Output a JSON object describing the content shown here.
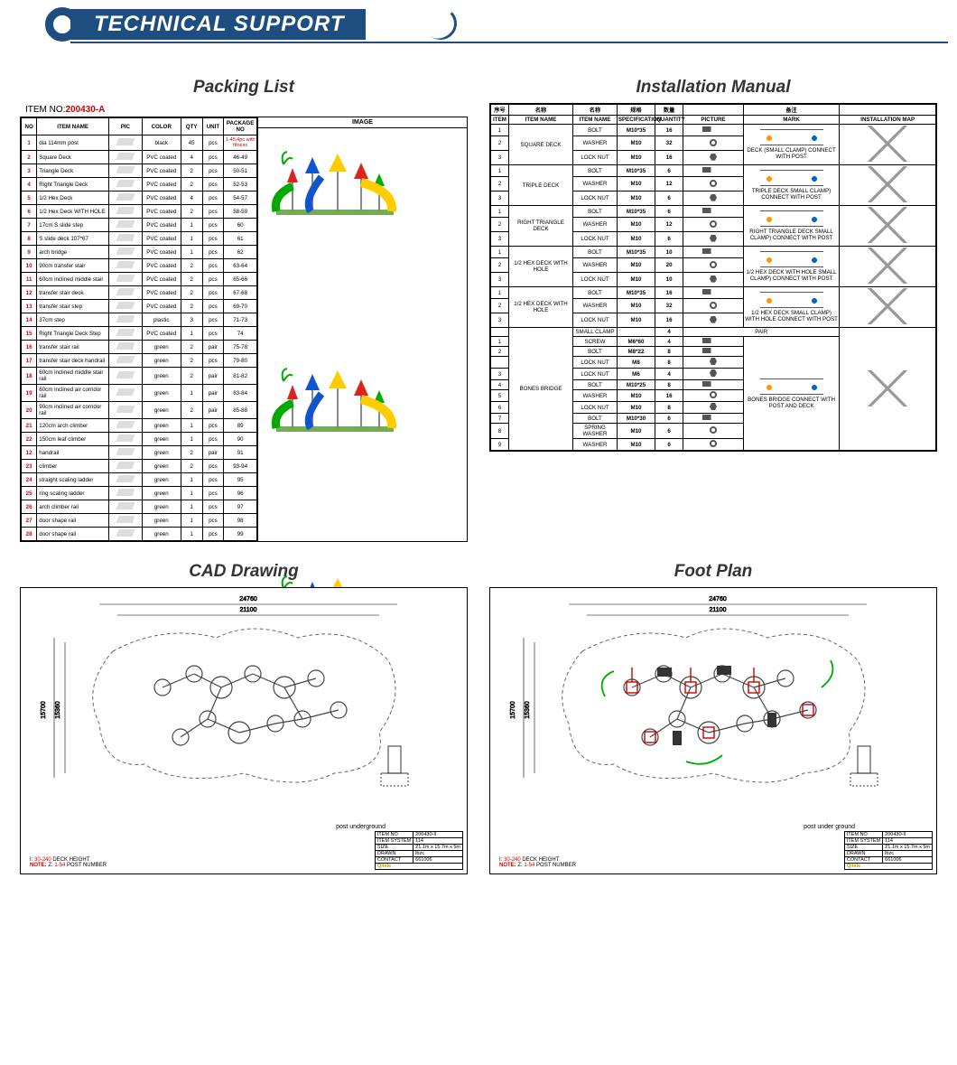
{
  "colors": {
    "brand": "#1e4d80",
    "accent_red": "#c00",
    "border": "#000000"
  },
  "banner": {
    "title": "TECHNICAL SUPPORT"
  },
  "packing": {
    "title": "Packing List",
    "item_no_label": "ITEM NO:",
    "item_no_value": "200430-A",
    "columns": [
      "NO",
      "ITEM NAME",
      "PIC",
      "COLOR",
      "QTY",
      "UNIT",
      "PACKAGE NO"
    ],
    "image_column": "IMAGE",
    "rows": [
      {
        "no": "1",
        "name": "dia 114mm post",
        "color": "black",
        "qty": "45",
        "unit": "pcs",
        "pkg": "1-45,4pc with fitness",
        "pkg_red": true
      },
      {
        "no": "2",
        "name": "Square Deck",
        "color": "PVC coated",
        "qty": "4",
        "unit": "pcs",
        "pkg": "46-49"
      },
      {
        "no": "3",
        "name": "Triangle Deck",
        "color": "PVC coated",
        "qty": "2",
        "unit": "pcs",
        "pkg": "50-51"
      },
      {
        "no": "4",
        "name": "Right Triangle Deck",
        "color": "PVC coated",
        "qty": "2",
        "unit": "pcs",
        "pkg": "52-53"
      },
      {
        "no": "5",
        "name": "1/2 Hex Deck",
        "color": "PVC coated",
        "qty": "4",
        "unit": "pcs",
        "pkg": "54-57"
      },
      {
        "no": "6",
        "name": "1/2 Hex Deck WITH HOLE",
        "color": "PVC coated",
        "qty": "2",
        "unit": "pcs",
        "pkg": "58-59"
      },
      {
        "no": "7",
        "name": "17cm S slide step",
        "color": "PVC coated",
        "qty": "1",
        "unit": "pcs",
        "pkg": "60"
      },
      {
        "no": "8",
        "name": "S slide deck 107*67",
        "color": "PVC coated",
        "qty": "1",
        "unit": "pcs",
        "pkg": "61"
      },
      {
        "no": "9",
        "name": "arch bridge",
        "color": "PVC coated",
        "qty": "1",
        "unit": "pcs",
        "pkg": "62"
      },
      {
        "no": "10",
        "name": "90cm transfer stair",
        "color": "PVC coated",
        "qty": "2",
        "unit": "pcs",
        "pkg": "63-64"
      },
      {
        "no": "11",
        "name": "60cm inclined middle stair",
        "color": "PVC coated",
        "qty": "2",
        "unit": "pcs",
        "pkg": "65-66"
      },
      {
        "no": "12",
        "name": "transfer stair deck",
        "color": "PVC coated",
        "qty": "2",
        "unit": "pcs",
        "pkg": "67-68"
      },
      {
        "no": "13",
        "name": "transfer stair step",
        "color": "PVC coated",
        "qty": "2",
        "unit": "pcs",
        "pkg": "69-70"
      },
      {
        "no": "14",
        "name": "37cm step",
        "color": "plastic",
        "qty": "3",
        "unit": "pcs",
        "pkg": "71-73"
      },
      {
        "no": "15",
        "name": "Right Triangle Deck Step",
        "color": "PVC coated",
        "qty": "1",
        "unit": "pcs",
        "pkg": "74"
      },
      {
        "no": "16",
        "name": "transfer stair rail",
        "color": "green",
        "qty": "2",
        "unit": "pair",
        "pkg": "75-78"
      },
      {
        "no": "17",
        "name": "transfer stair deck handrail",
        "color": "green",
        "qty": "2",
        "unit": "pcs",
        "pkg": "79-80"
      },
      {
        "no": "18",
        "name": "60cm inclined middle stair rail",
        "color": "green",
        "qty": "2",
        "unit": "pair",
        "pkg": "81-82"
      },
      {
        "no": "19",
        "name": "60cm inclined air corridor rail",
        "color": "green",
        "qty": "1",
        "unit": "pair",
        "pkg": "83-84"
      },
      {
        "no": "20",
        "name": "90cm inclined air corridor rail",
        "color": "green",
        "qty": "2",
        "unit": "pair",
        "pkg": "85-88"
      },
      {
        "no": "21",
        "name": "120cm arch climber",
        "color": "green",
        "qty": "1",
        "unit": "pcs",
        "pkg": "89"
      },
      {
        "no": "22",
        "name": "150cm leaf climber",
        "color": "green",
        "qty": "1",
        "unit": "pcs",
        "pkg": "90"
      },
      {
        "no": "12",
        "name": "handrail",
        "color": "green",
        "qty": "2",
        "unit": "pair",
        "pkg": "91"
      },
      {
        "no": "23",
        "name": "climber",
        "color": "green",
        "qty": "2",
        "unit": "pcs",
        "pkg": "93-94"
      },
      {
        "no": "24",
        "name": "straight scaling ladder",
        "color": "green",
        "qty": "1",
        "unit": "pcs",
        "pkg": "95"
      },
      {
        "no": "25",
        "name": "ring scaling ladder",
        "color": "green",
        "qty": "1",
        "unit": "pcs",
        "pkg": "96"
      },
      {
        "no": "26",
        "name": "arch climber rail",
        "color": "green",
        "qty": "1",
        "unit": "pcs",
        "pkg": "97"
      },
      {
        "no": "27",
        "name": "door shape rail",
        "color": "green",
        "qty": "1",
        "unit": "pcs",
        "pkg": "98"
      },
      {
        "no": "28",
        "name": "door shape rail",
        "color": "green",
        "qty": "1",
        "unit": "pcs",
        "pkg": "99"
      }
    ]
  },
  "install": {
    "title": "Installation Manual",
    "header1": [
      "序号",
      "名称",
      "名称",
      "规格",
      "数量",
      "",
      "备注",
      ""
    ],
    "header2": [
      "ITEM",
      "ITEM NAME",
      "ITEM NAME",
      "SPECIFICATION",
      "QUANTITY",
      "PICTURE",
      "MARK",
      "INSTALLATION MAP"
    ],
    "groups": [
      {
        "deck": "SQUARE DECK",
        "mark": "DECK (SMALL CLAMP) CONNECT WITH POST",
        "rows": [
          {
            "n": "1",
            "name": "BOLT",
            "spec": "M10*35",
            "qty": "16",
            "p": "bolt"
          },
          {
            "n": "2",
            "name": "WASHER",
            "spec": "M10",
            "qty": "32",
            "p": "washer"
          },
          {
            "n": "3",
            "name": "LOCK NUT",
            "spec": "M10",
            "qty": "16",
            "p": "nut"
          }
        ]
      },
      {
        "deck": "TRIPLE DECK",
        "mark": "TRIPLE DECK SMALL CLAMP) CONNECT WITH POST",
        "rows": [
          {
            "n": "1",
            "name": "BOLT",
            "spec": "M10*35",
            "qty": "6",
            "p": "bolt"
          },
          {
            "n": "2",
            "name": "WASHER",
            "spec": "M10",
            "qty": "12",
            "p": "washer"
          },
          {
            "n": "3",
            "name": "LOCK NUT",
            "spec": "M10",
            "qty": "6",
            "p": "nut"
          }
        ]
      },
      {
        "deck": "RIGHT TRIANGLE DECK",
        "mark": "RIGHT TRIANGLE DECK SMALL CLAMP) CONNECT WITH POST",
        "rows": [
          {
            "n": "1",
            "name": "BOLT",
            "spec": "M10*35",
            "qty": "6",
            "p": "bolt"
          },
          {
            "n": "2",
            "name": "WASHER",
            "spec": "M10",
            "qty": "12",
            "p": "washer"
          },
          {
            "n": "3",
            "name": "LOCK NUT",
            "spec": "M10",
            "qty": "6",
            "p": "nut"
          }
        ]
      },
      {
        "deck": "1/2 HEX DECK WITH HOLE",
        "mark": "1/2 HEX DECK WITH HOLE SMALL CLAMP) CONNECT WITH POST",
        "rows": [
          {
            "n": "1",
            "name": "BOLT",
            "spec": "M10*35",
            "qty": "10",
            "p": "bolt"
          },
          {
            "n": "2",
            "name": "WASHER",
            "spec": "M10",
            "qty": "20",
            "p": "washer"
          },
          {
            "n": "3",
            "name": "LOCK NUT",
            "spec": "M10",
            "qty": "10",
            "p": "nut"
          }
        ]
      },
      {
        "deck": "1/2 HEX DECK WITH HOLE",
        "mark": "1/2 HEX DECK SMALL CLAMP) WITH HOLE CONNECT WITH POST",
        "rows": [
          {
            "n": "1",
            "name": "BOLT",
            "spec": "M10*35",
            "qty": "16",
            "p": "bolt"
          },
          {
            "n": "2",
            "name": "WASHER",
            "spec": "M10",
            "qty": "32",
            "p": "washer"
          },
          {
            "n": "3",
            "name": "LOCK NUT",
            "spec": "M10",
            "qty": "16",
            "p": "nut"
          }
        ]
      },
      {
        "deck": "BONES BRIDGE",
        "mark": "BONES BRIDGE CONNECT WITH POST AND DECK",
        "pair_row": {
          "name": "SMALL CLAMP",
          "spec": "",
          "qty": "4",
          "text": "PAIR"
        },
        "rows": [
          {
            "n": "1",
            "name": "SCREW",
            "spec": "M6*60",
            "qty": "4",
            "p": "bolt"
          },
          {
            "n": "2",
            "name": "BOLT",
            "spec": "M8*22",
            "qty": "8",
            "p": "bolt"
          },
          {
            "n": "",
            "name": "LOCK NUT",
            "spec": "M8",
            "qty": "8",
            "p": "nut"
          },
          {
            "n": "3",
            "name": "LOCK NUT",
            "spec": "M6",
            "qty": "4",
            "p": "nut"
          },
          {
            "n": "4",
            "name": "BOLT",
            "spec": "M10*25",
            "qty": "8",
            "p": "bolt"
          },
          {
            "n": "5",
            "name": "WASHER",
            "spec": "M10",
            "qty": "16",
            "p": "washer"
          },
          {
            "n": "6",
            "name": "LOCK NUT",
            "spec": "M10",
            "qty": "8",
            "p": "nut"
          },
          {
            "n": "7",
            "name": "BOLT",
            "spec": "M10*30",
            "qty": "6",
            "p": "bolt"
          },
          {
            "n": "8",
            "name": "SPRING WASHER",
            "spec": "M10",
            "qty": "6",
            "p": "washer"
          },
          {
            "n": "9",
            "name": "WASHER",
            "spec": "M10",
            "qty": "6",
            "p": "washer"
          }
        ]
      }
    ]
  },
  "cad": {
    "title": "CAD Drawing",
    "dim_top_outer": "24760",
    "dim_top_inner": "21100",
    "dim_left": "15700",
    "dim_left2": "15360",
    "foot_note": "post underground",
    "note": {
      "label": "NOTE:",
      "l1a": "I:",
      "l1b": "30-240",
      "l1c": "DECK HEIGHT",
      "l2a": "Z:",
      "l2b": "1-54",
      "l2c": "POST NUMBER"
    },
    "titleblock": [
      [
        "ITEM NO",
        "200430-II"
      ],
      [
        "ITEM SYSTEM",
        "114"
      ],
      [
        "SIZE",
        "21.1m x 15.7m x 5m"
      ],
      [
        "DRAWN",
        "lbzc"
      ],
      [
        "CONTACT",
        "661006"
      ]
    ],
    "brand": "Qitele"
  },
  "foot": {
    "title": "Foot Plan",
    "dim_top_outer": "24760",
    "dim_top_inner": "21100",
    "dim_left": "15700",
    "dim_left2": "15360",
    "foot_note": "post under ground",
    "note": {
      "label": "NOTE:",
      "l1a": "I:",
      "l1b": "30-240",
      "l1c": "DECK HEIGHT",
      "l2a": "Z:",
      "l2b": "1-54",
      "l2c": "POST NUMBER"
    },
    "titleblock": [
      [
        "ITEM NO",
        "200430-II"
      ],
      [
        "ITEM SYSTEM",
        "114"
      ],
      [
        "SIZE",
        "21.1m x 15.7m x 5m"
      ],
      [
        "DRAWN",
        "lbzc"
      ],
      [
        "CONTACT",
        "661006"
      ]
    ],
    "brand": "Qitele"
  }
}
